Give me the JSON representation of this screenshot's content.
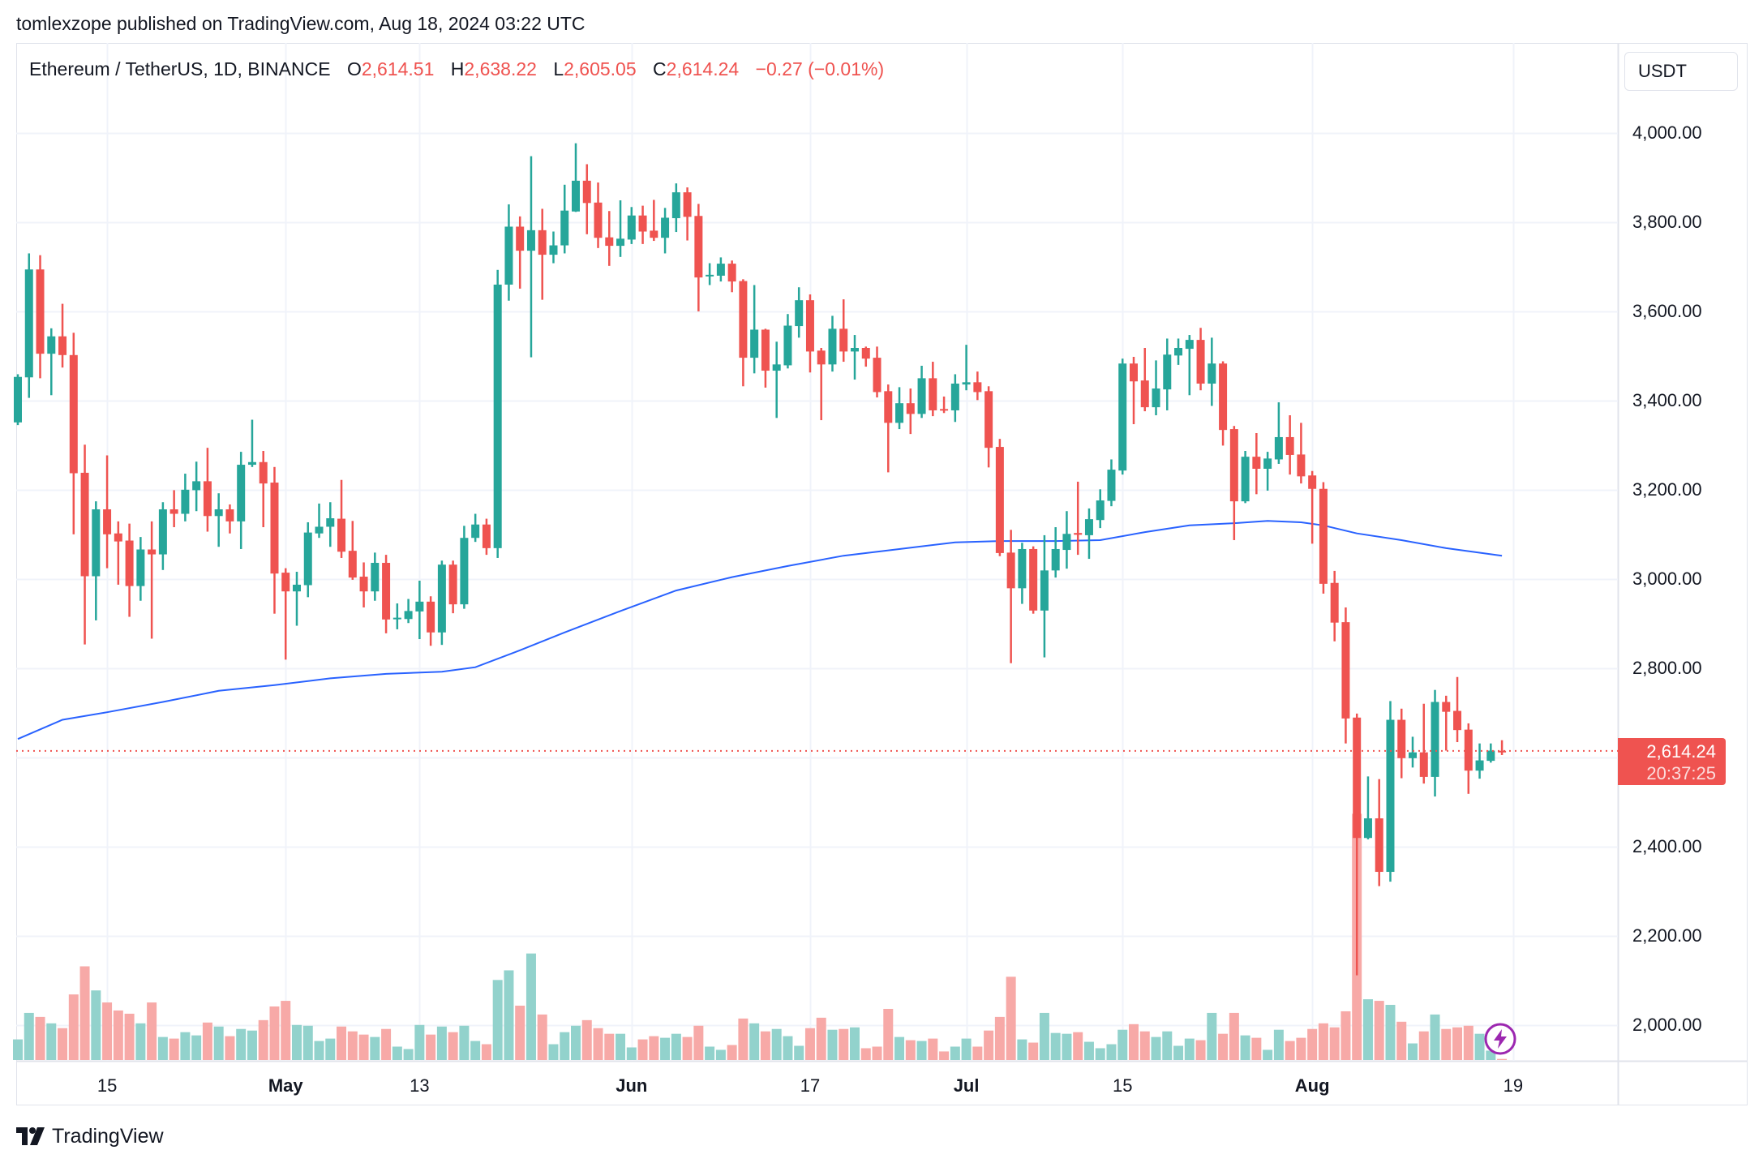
{
  "header": {
    "publish_text": "tomlexzope published on TradingView.com, Aug 18, 2024 03:22 UTC"
  },
  "legend": {
    "symbol": "Ethereum / TetherUS, 1D, BINANCE",
    "open_label": "O",
    "open": "2,614.51",
    "high_label": "H",
    "high": "2,638.22",
    "low_label": "L",
    "low": "2,605.05",
    "close_label": "C",
    "close": "2,614.24",
    "change": "−0.27 (−0.01%)"
  },
  "price_axis": {
    "currency": "USDT"
  },
  "last_price_tag": {
    "price": "2,614.24",
    "countdown": "20:37:25"
  },
  "branding": {
    "logo_text": "TradingView"
  },
  "icons": {
    "alert": "lightning-bolt-icon",
    "logo": "tradingview-logo-icon"
  },
  "colors": {
    "up": "#26a69a",
    "down": "#ef5350",
    "up_volume": "#92d2cc",
    "down_volume": "#f7a9a7",
    "moving_average": "#2962ff",
    "grid": "#f0f3fa",
    "alert": "#9c27b0"
  },
  "chart_data": {
    "type": "candlestick",
    "title": "",
    "xlabel": "",
    "ylabel": "",
    "ylim": [
      1900,
      4100
    ],
    "grid": true,
    "y_ticks": [
      {
        "value": 4000,
        "label": "4,000.00"
      },
      {
        "value": 3800,
        "label": "3,800.00"
      },
      {
        "value": 3600,
        "label": "3,600.00"
      },
      {
        "value": 3400,
        "label": "3,400.00"
      },
      {
        "value": 3200,
        "label": "3,200.00"
      },
      {
        "value": 3000,
        "label": "3,000.00"
      },
      {
        "value": 2800,
        "label": "2,800.00"
      },
      {
        "value": 2600,
        "label": "2,600.00"
      },
      {
        "value": 2400,
        "label": "2,400.00"
      },
      {
        "value": 2200,
        "label": "2,200.00"
      },
      {
        "value": 2000,
        "label": "2,000.00"
      }
    ],
    "x_ticks": [
      {
        "date": "2024-04-15",
        "label": "15",
        "month": false
      },
      {
        "date": "2024-05-01",
        "label": "May",
        "month": true
      },
      {
        "date": "2024-05-13",
        "label": "13",
        "month": false
      },
      {
        "date": "2024-06-01",
        "label": "Jun",
        "month": true
      },
      {
        "date": "2024-06-17",
        "label": "17",
        "month": false
      },
      {
        "date": "2024-07-01",
        "label": "Jul",
        "month": true
      },
      {
        "date": "2024-07-15",
        "label": "15",
        "month": false
      },
      {
        "date": "2024-08-01",
        "label": "Aug",
        "month": true
      },
      {
        "date": "2024-08-19",
        "label": "19",
        "month": false
      }
    ],
    "last_price": 2614.24,
    "candles_fields": [
      "date",
      "open",
      "high",
      "low",
      "close"
    ],
    "candles": [
      [
        "2024-04-07",
        3351,
        3459,
        3345,
        3453
      ],
      [
        "2024-04-08",
        3452,
        3730,
        3406,
        3694
      ],
      [
        "2024-04-09",
        3694,
        3726,
        3450,
        3505
      ],
      [
        "2024-04-10",
        3505,
        3562,
        3412,
        3544
      ],
      [
        "2024-04-11",
        3544,
        3617,
        3474,
        3502
      ],
      [
        "2024-04-12",
        3502,
        3552,
        3100,
        3237
      ],
      [
        "2024-04-13",
        3238,
        3301,
        2853,
        3006
      ],
      [
        "2024-04-14",
        3006,
        3174,
        2907,
        3156
      ],
      [
        "2024-04-15",
        3156,
        3277,
        3024,
        3100
      ],
      [
        "2024-04-16",
        3102,
        3129,
        2987,
        3084
      ],
      [
        "2024-04-17",
        3086,
        3124,
        2915,
        2984
      ],
      [
        "2024-04-18",
        2984,
        3094,
        2951,
        3066
      ],
      [
        "2024-04-19",
        3066,
        3129,
        2866,
        3055
      ],
      [
        "2024-04-20",
        3055,
        3172,
        3020,
        3156
      ],
      [
        "2024-04-21",
        3156,
        3199,
        3116,
        3146
      ],
      [
        "2024-04-22",
        3146,
        3236,
        3129,
        3200
      ],
      [
        "2024-04-23",
        3199,
        3263,
        3152,
        3219
      ],
      [
        "2024-04-24",
        3219,
        3294,
        3106,
        3141
      ],
      [
        "2024-04-25",
        3141,
        3192,
        3072,
        3156
      ],
      [
        "2024-04-26",
        3156,
        3167,
        3102,
        3129
      ],
      [
        "2024-04-27",
        3129,
        3285,
        3067,
        3256
      ],
      [
        "2024-04-28",
        3256,
        3357,
        3251,
        3262
      ],
      [
        "2024-04-29",
        3262,
        3287,
        3116,
        3214
      ],
      [
        "2024-04-30",
        3216,
        3251,
        2922,
        3012
      ],
      [
        "2024-05-01",
        3014,
        3024,
        2819,
        2972
      ],
      [
        "2024-05-02",
        2972,
        3016,
        2895,
        2987
      ],
      [
        "2024-05-03",
        2986,
        3127,
        2959,
        3104
      ],
      [
        "2024-05-04",
        3102,
        3169,
        3092,
        3117
      ],
      [
        "2024-05-05",
        3117,
        3172,
        3072,
        3136
      ],
      [
        "2024-05-06",
        3135,
        3222,
        3047,
        3061
      ],
      [
        "2024-05-07",
        3063,
        3130,
        2998,
        3003
      ],
      [
        "2024-05-08",
        3005,
        3037,
        2936,
        2972
      ],
      [
        "2024-05-09",
        2972,
        3059,
        2951,
        3036
      ],
      [
        "2024-05-10",
        3036,
        3054,
        2878,
        2909
      ],
      [
        "2024-05-11",
        2910,
        2945,
        2887,
        2913
      ],
      [
        "2024-05-12",
        2910,
        2955,
        2901,
        2928
      ],
      [
        "2024-05-13",
        2927,
        2996,
        2865,
        2949
      ],
      [
        "2024-05-14",
        2949,
        2961,
        2850,
        2880
      ],
      [
        "2024-05-15",
        2880,
        3041,
        2852,
        3032
      ],
      [
        "2024-05-16",
        3032,
        3041,
        2923,
        2943
      ],
      [
        "2024-05-17",
        2943,
        3119,
        2933,
        3092
      ],
      [
        "2024-05-18",
        3092,
        3146,
        3083,
        3122
      ],
      [
        "2024-05-19",
        3122,
        3135,
        3054,
        3069
      ],
      [
        "2024-05-20",
        3069,
        3693,
        3047,
        3660
      ],
      [
        "2024-05-21",
        3660,
        3840,
        3624,
        3790
      ],
      [
        "2024-05-22",
        3790,
        3813,
        3651,
        3736
      ],
      [
        "2024-05-23",
        3736,
        3948,
        3497,
        3782
      ],
      [
        "2024-05-24",
        3782,
        3830,
        3626,
        3727
      ],
      [
        "2024-05-25",
        3727,
        3779,
        3708,
        3748
      ],
      [
        "2024-05-26",
        3748,
        3884,
        3730,
        3826
      ],
      [
        "2024-05-27",
        3824,
        3977,
        3823,
        3893
      ],
      [
        "2024-05-28",
        3893,
        3930,
        3773,
        3843
      ],
      [
        "2024-05-29",
        3844,
        3889,
        3742,
        3765
      ],
      [
        "2024-05-30",
        3766,
        3825,
        3702,
        3747
      ],
      [
        "2024-05-31",
        3747,
        3849,
        3722,
        3763
      ],
      [
        "2024-06-01",
        3761,
        3834,
        3751,
        3815
      ],
      [
        "2024-06-02",
        3815,
        3837,
        3751,
        3779
      ],
      [
        "2024-06-03",
        3781,
        3850,
        3758,
        3765
      ],
      [
        "2024-06-04",
        3765,
        3832,
        3730,
        3810
      ],
      [
        "2024-06-05",
        3809,
        3887,
        3778,
        3867
      ],
      [
        "2024-06-06",
        3867,
        3878,
        3759,
        3812
      ],
      [
        "2024-06-07",
        3814,
        3841,
        3600,
        3676
      ],
      [
        "2024-06-08",
        3680,
        3708,
        3659,
        3682
      ],
      [
        "2024-06-09",
        3680,
        3721,
        3667,
        3707
      ],
      [
        "2024-06-10",
        3707,
        3714,
        3643,
        3667
      ],
      [
        "2024-06-11",
        3668,
        3672,
        3432,
        3496
      ],
      [
        "2024-06-12",
        3496,
        3659,
        3461,
        3559
      ],
      [
        "2024-06-13",
        3559,
        3561,
        3429,
        3467
      ],
      [
        "2024-06-14",
        3467,
        3532,
        3361,
        3481
      ],
      [
        "2024-06-15",
        3479,
        3594,
        3472,
        3568
      ],
      [
        "2024-06-16",
        3567,
        3654,
        3541,
        3625
      ],
      [
        "2024-06-17",
        3625,
        3638,
        3463,
        3510
      ],
      [
        "2024-06-18",
        3512,
        3518,
        3356,
        3481
      ],
      [
        "2024-06-19",
        3481,
        3590,
        3465,
        3561
      ],
      [
        "2024-06-20",
        3561,
        3627,
        3487,
        3510
      ],
      [
        "2024-06-21",
        3510,
        3547,
        3447,
        3518
      ],
      [
        "2024-06-22",
        3518,
        3521,
        3476,
        3494
      ],
      [
        "2024-06-23",
        3496,
        3521,
        3407,
        3419
      ],
      [
        "2024-06-24",
        3421,
        3436,
        3239,
        3350
      ],
      [
        "2024-06-25",
        3350,
        3430,
        3336,
        3394
      ],
      [
        "2024-06-26",
        3394,
        3427,
        3325,
        3370
      ],
      [
        "2024-06-27",
        3370,
        3478,
        3361,
        3450
      ],
      [
        "2024-06-28",
        3450,
        3487,
        3365,
        3378
      ],
      [
        "2024-06-29",
        3381,
        3409,
        3372,
        3378
      ],
      [
        "2024-06-30",
        3378,
        3459,
        3352,
        3438
      ],
      [
        "2024-07-01",
        3436,
        3525,
        3423,
        3441
      ],
      [
        "2024-07-02",
        3441,
        3465,
        3401,
        3419
      ],
      [
        "2024-07-03",
        3421,
        3432,
        3250,
        3294
      ],
      [
        "2024-07-04",
        3296,
        3314,
        3051,
        3058
      ],
      [
        "2024-07-05",
        3059,
        3110,
        2811,
        2979
      ],
      [
        "2024-07-06",
        2979,
        3081,
        2944,
        3067
      ],
      [
        "2024-07-07",
        3067,
        3073,
        2922,
        2929
      ],
      [
        "2024-07-08",
        2929,
        3098,
        2824,
        3019
      ],
      [
        "2024-07-09",
        3019,
        3116,
        3003,
        3067
      ],
      [
        "2024-07-10",
        3065,
        3152,
        3023,
        3101
      ],
      [
        "2024-07-11",
        3103,
        3218,
        3054,
        3099
      ],
      [
        "2024-07-12",
        3098,
        3158,
        3045,
        3134
      ],
      [
        "2024-07-13",
        3132,
        3201,
        3114,
        3176
      ],
      [
        "2024-07-14",
        3175,
        3268,
        3163,
        3245
      ],
      [
        "2024-07-15",
        3243,
        3494,
        3234,
        3483
      ],
      [
        "2024-07-16",
        3483,
        3498,
        3347,
        3443
      ],
      [
        "2024-07-17",
        3445,
        3518,
        3376,
        3385
      ],
      [
        "2024-07-18",
        3385,
        3490,
        3367,
        3427
      ],
      [
        "2024-07-19",
        3425,
        3539,
        3378,
        3503
      ],
      [
        "2024-07-20",
        3501,
        3539,
        3480,
        3518
      ],
      [
        "2024-07-21",
        3516,
        3547,
        3412,
        3536
      ],
      [
        "2024-07-22",
        3536,
        3563,
        3423,
        3438
      ],
      [
        "2024-07-23",
        3438,
        3541,
        3388,
        3483
      ],
      [
        "2024-07-24",
        3483,
        3488,
        3299,
        3334
      ],
      [
        "2024-07-25",
        3336,
        3343,
        3087,
        3174
      ],
      [
        "2024-07-26",
        3174,
        3287,
        3170,
        3274
      ],
      [
        "2024-07-27",
        3274,
        3327,
        3190,
        3247
      ],
      [
        "2024-07-28",
        3247,
        3285,
        3198,
        3270
      ],
      [
        "2024-07-29",
        3268,
        3396,
        3258,
        3318
      ],
      [
        "2024-07-30",
        3318,
        3367,
        3234,
        3278
      ],
      [
        "2024-07-31",
        3279,
        3350,
        3214,
        3230
      ],
      [
        "2024-08-01",
        3232,
        3242,
        3079,
        3202
      ],
      [
        "2024-08-02",
        3202,
        3217,
        2967,
        2989
      ],
      [
        "2024-08-03",
        2991,
        3018,
        2860,
        2902
      ],
      [
        "2024-08-04",
        2903,
        2936,
        2631,
        2687
      ],
      [
        "2024-08-05",
        2689,
        2698,
        2111,
        2419
      ],
      [
        "2024-08-06",
        2419,
        2557,
        2416,
        2463
      ],
      [
        "2024-08-07",
        2463,
        2551,
        2311,
        2343
      ],
      [
        "2024-08-08",
        2343,
        2726,
        2321,
        2684
      ],
      [
        "2024-08-09",
        2684,
        2709,
        2553,
        2598
      ],
      [
        "2024-08-10",
        2598,
        2646,
        2577,
        2611
      ],
      [
        "2024-08-11",
        2611,
        2720,
        2541,
        2556
      ],
      [
        "2024-08-12",
        2556,
        2751,
        2512,
        2724
      ],
      [
        "2024-08-13",
        2724,
        2738,
        2615,
        2702
      ],
      [
        "2024-08-14",
        2704,
        2780,
        2634,
        2661
      ],
      [
        "2024-08-15",
        2662,
        2676,
        2518,
        2570
      ],
      [
        "2024-08-16",
        2570,
        2631,
        2552,
        2593
      ],
      [
        "2024-08-17",
        2592,
        2631,
        2588,
        2615
      ],
      [
        "2024-08-18",
        2614.51,
        2638.22,
        2605.05,
        2614.24
      ]
    ],
    "volume_relative": [
      77,
      176,
      161,
      137,
      119,
      245,
      350,
      260,
      215,
      185,
      173,
      137,
      215,
      86,
      80,
      104,
      92,
      140,
      125,
      89,
      116,
      110,
      149,
      200,
      221,
      131,
      128,
      71,
      80,
      125,
      107,
      95,
      86,
      116,
      50,
      41,
      131,
      95,
      125,
      104,
      128,
      71,
      59,
      299,
      335,
      203,
      398,
      170,
      59,
      104,
      128,
      149,
      119,
      98,
      98,
      47,
      77,
      89,
      83,
      98,
      86,
      128,
      50,
      38,
      56,
      155,
      137,
      107,
      116,
      89,
      53,
      119,
      158,
      113,
      116,
      122,
      44,
      50,
      191,
      86,
      74,
      71,
      80,
      32,
      50,
      80,
      50,
      110,
      161,
      311,
      77,
      65,
      176,
      101,
      98,
      104,
      68,
      44,
      59,
      113,
      134,
      107,
      86,
      107,
      53,
      80,
      74,
      176,
      98,
      176,
      92,
      83,
      38,
      113,
      71,
      83,
      116,
      137,
      122,
      182,
      920,
      227,
      221,
      206,
      143,
      62,
      107,
      170,
      116,
      122,
      128,
      98,
      35,
      4
    ],
    "moving_average": [
      [
        "2024-04-07",
        2641
      ],
      [
        "2024-04-11",
        2684
      ],
      [
        "2024-04-15",
        2701
      ],
      [
        "2024-04-20",
        2724
      ],
      [
        "2024-04-25",
        2749
      ],
      [
        "2024-04-30",
        2762
      ],
      [
        "2024-05-05",
        2777
      ],
      [
        "2024-05-10",
        2787
      ],
      [
        "2024-05-15",
        2792
      ],
      [
        "2024-05-18",
        2802
      ],
      [
        "2024-05-22",
        2840
      ],
      [
        "2024-05-26",
        2880
      ],
      [
        "2024-05-31",
        2928
      ],
      [
        "2024-06-05",
        2974
      ],
      [
        "2024-06-10",
        3004
      ],
      [
        "2024-06-15",
        3029
      ],
      [
        "2024-06-20",
        3052
      ],
      [
        "2024-06-25",
        3067
      ],
      [
        "2024-06-30",
        3082
      ],
      [
        "2024-07-04",
        3085
      ],
      [
        "2024-07-09",
        3085
      ],
      [
        "2024-07-13",
        3087
      ],
      [
        "2024-07-17",
        3105
      ],
      [
        "2024-07-21",
        3120
      ],
      [
        "2024-07-25",
        3125
      ],
      [
        "2024-07-28",
        3130
      ],
      [
        "2024-07-31",
        3127
      ],
      [
        "2024-08-02",
        3120
      ],
      [
        "2024-08-05",
        3102
      ],
      [
        "2024-08-09",
        3087
      ],
      [
        "2024-08-13",
        3069
      ],
      [
        "2024-08-18",
        3052
      ]
    ]
  }
}
